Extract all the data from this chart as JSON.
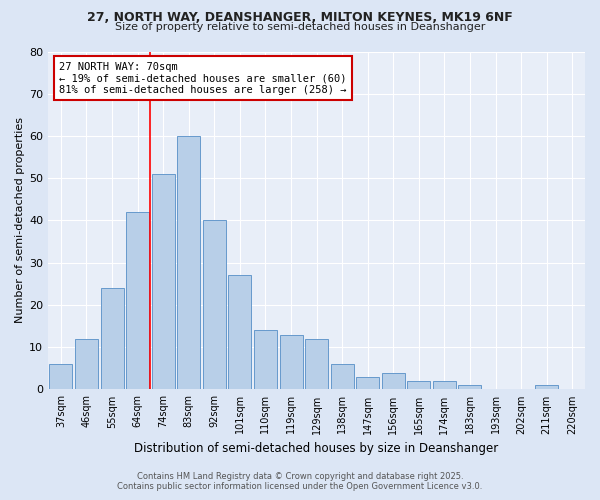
{
  "title1": "27, NORTH WAY, DEANSHANGER, MILTON KEYNES, MK19 6NF",
  "title2": "Size of property relative to semi-detached houses in Deanshanger",
  "xlabel": "Distribution of semi-detached houses by size in Deanshanger",
  "ylabel": "Number of semi-detached properties",
  "categories": [
    "37sqm",
    "46sqm",
    "55sqm",
    "64sqm",
    "74sqm",
    "83sqm",
    "92sqm",
    "101sqm",
    "110sqm",
    "119sqm",
    "129sqm",
    "138sqm",
    "147sqm",
    "156sqm",
    "165sqm",
    "174sqm",
    "183sqm",
    "193sqm",
    "202sqm",
    "211sqm",
    "220sqm"
  ],
  "values": [
    6,
    12,
    24,
    42,
    51,
    60,
    40,
    27,
    14,
    13,
    12,
    6,
    3,
    4,
    2,
    2,
    1,
    0,
    0,
    1,
    0
  ],
  "bar_color": "#b8cfe8",
  "bar_edge_color": "#6699cc",
  "red_line_index": 4,
  "annotation_text": "27 NORTH WAY: 70sqm\n← 19% of semi-detached houses are smaller (60)\n81% of semi-detached houses are larger (258) →",
  "annotation_box_color": "#ffffff",
  "annotation_box_edge": "#cc0000",
  "ylim": [
    0,
    80
  ],
  "yticks": [
    0,
    10,
    20,
    30,
    40,
    50,
    60,
    70,
    80
  ],
  "footer1": "Contains HM Land Registry data © Crown copyright and database right 2025.",
  "footer2": "Contains public sector information licensed under the Open Government Licence v3.0.",
  "bg_color": "#dce6f5",
  "plot_bg_color": "#e8eef8"
}
